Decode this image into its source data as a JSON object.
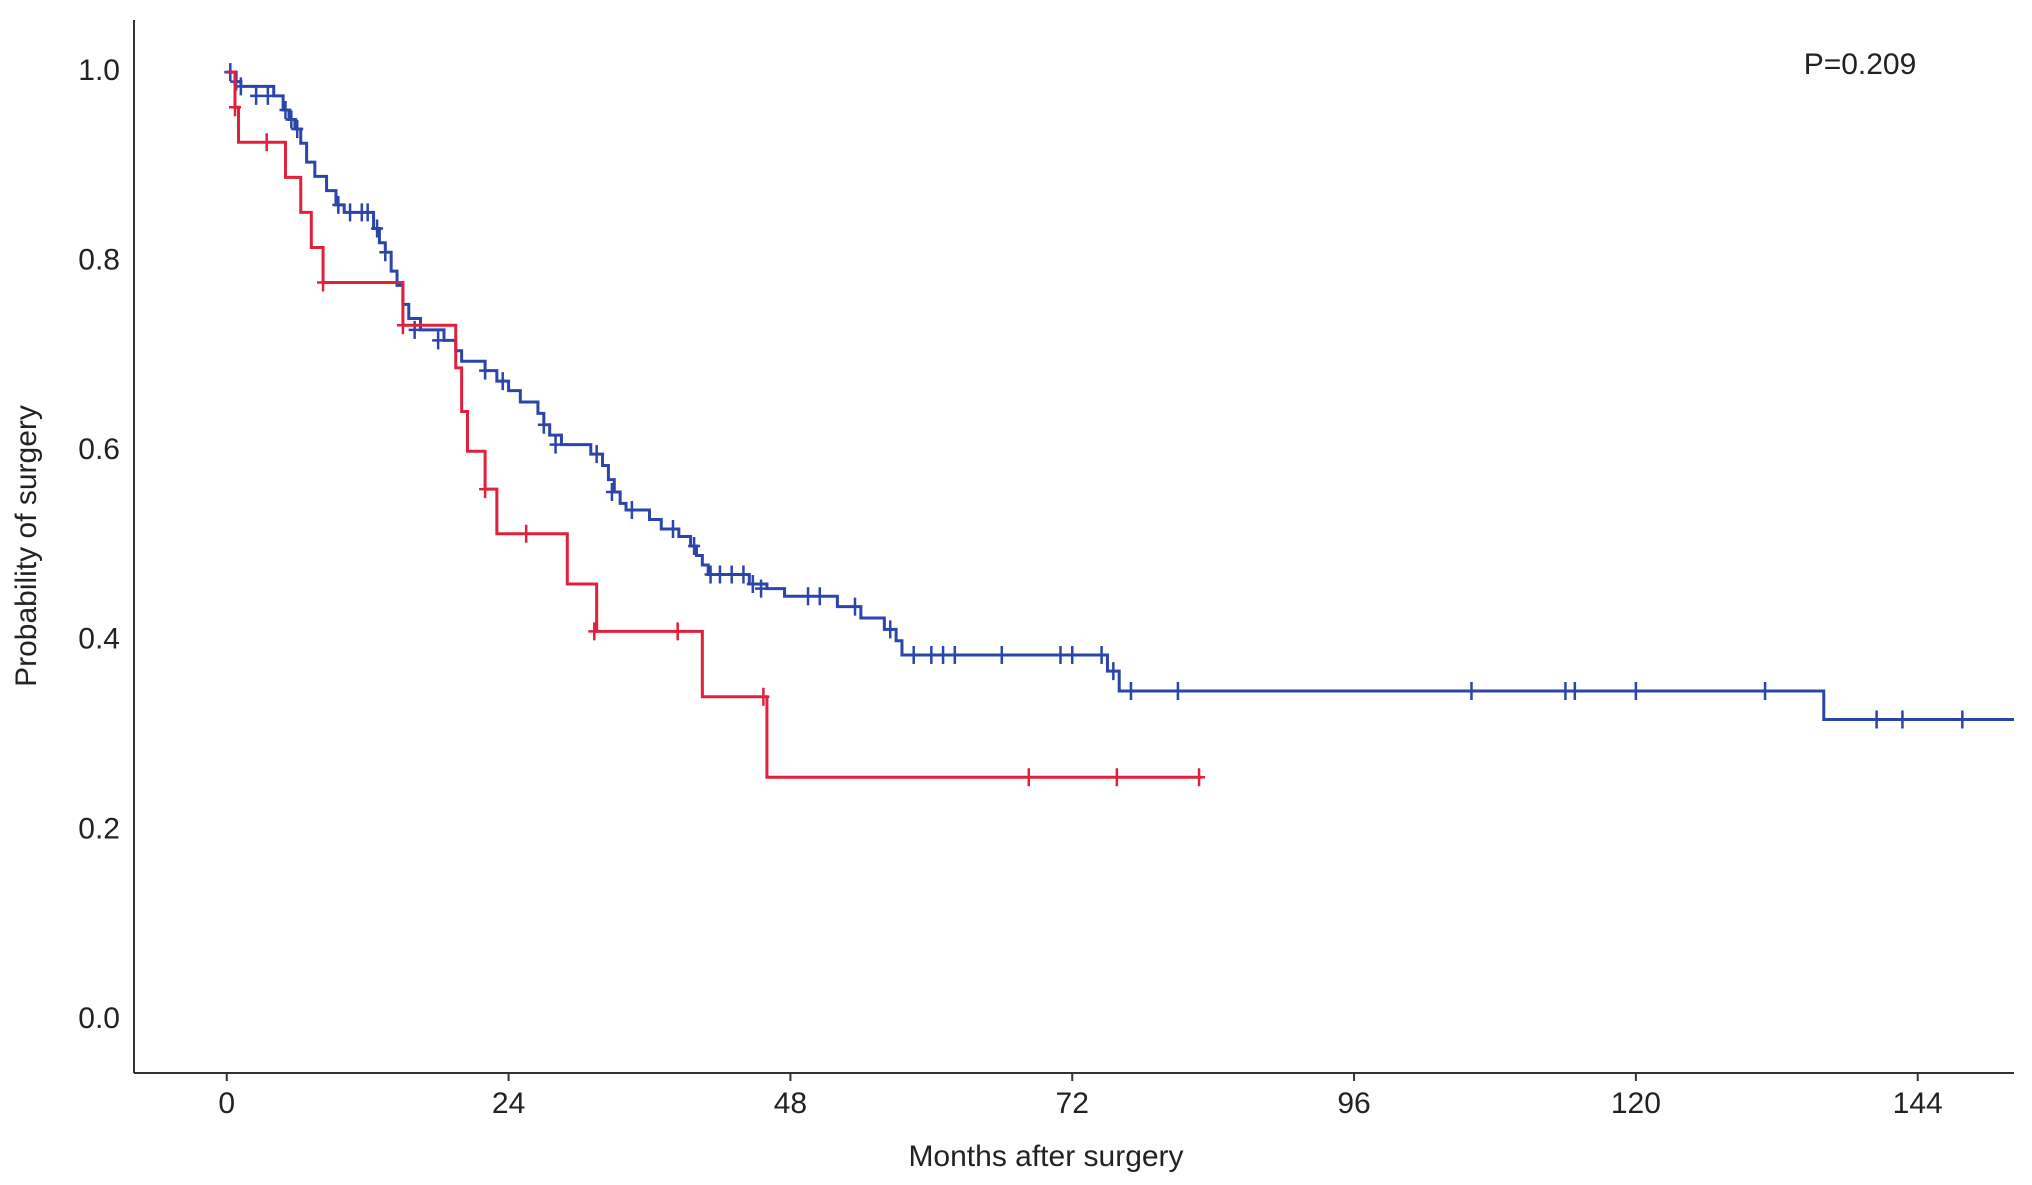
{
  "chart_data": {
    "type": "step",
    "annotation": "P=0.209",
    "xlabel": "Months after surgery",
    "ylabel": "Probability of surgery",
    "xlim": [
      -7.9,
      152.2
    ],
    "ylim": [
      -0.056,
      1.055
    ],
    "xticks": [
      0,
      24,
      48,
      72,
      96,
      120,
      144
    ],
    "yticks": [
      {
        "value": 0,
        "label": "0.0"
      },
      {
        "value": 0.2,
        "label": "0.2"
      },
      {
        "value": 0.4,
        "label": "0.4"
      },
      {
        "value": 0.6,
        "label": "0.6"
      },
      {
        "value": 0.8,
        "label": "0.8"
      },
      {
        "value": 1,
        "label": "1.0"
      }
    ],
    "series": [
      {
        "color": "#2b45a8",
        "x": [
          0,
          0.8,
          1.2,
          4,
          4.8,
          5.3,
          5.8,
          6.3,
          6.8,
          7.5,
          8.5,
          9.3,
          10,
          12.5,
          13,
          13.5,
          14,
          14.5,
          15,
          15.5,
          16.5,
          18.5,
          19.5,
          20,
          22,
          23,
          24,
          25,
          26.5,
          27,
          27.5,
          28.5,
          31,
          32,
          32.5,
          33,
          33.5,
          34,
          36,
          37,
          38.5,
          39.5,
          40,
          40.5,
          41,
          44.5,
          46,
          47.5,
          52,
          54,
          56,
          57,
          57.5,
          75,
          76,
          136,
          152.2
        ],
        "values": [
          1.0,
          0.99,
          0.985,
          0.975,
          0.96,
          0.95,
          0.94,
          0.925,
          0.905,
          0.89,
          0.875,
          0.86,
          0.852,
          0.835,
          0.82,
          0.81,
          0.79,
          0.775,
          0.755,
          0.74,
          0.728,
          0.717,
          0.706,
          0.695,
          0.685,
          0.674,
          0.664,
          0.652,
          0.64,
          0.628,
          0.617,
          0.607,
          0.597,
          0.585,
          0.57,
          0.557,
          0.545,
          0.538,
          0.528,
          0.518,
          0.51,
          0.5,
          0.49,
          0.48,
          0.47,
          0.46,
          0.455,
          0.447,
          0.436,
          0.424,
          0.412,
          0.4,
          0.385,
          0.368,
          0.347,
          0.317,
          0.317
        ],
        "censored": {
          "x": [
            0.3,
            0.8,
            1.2,
            2.5,
            3.5,
            5,
            5.5,
            6,
            9.5,
            10.5,
            11.5,
            12,
            12.8,
            13.5,
            16,
            18,
            22,
            23.5,
            27,
            28,
            31.5,
            32.8,
            34.5,
            38,
            39.8,
            41.2,
            42,
            43,
            44,
            44.8,
            45.5,
            49.5,
            50.5,
            53.5,
            56.5,
            58.5,
            60,
            61,
            62,
            66,
            71,
            72,
            74.5,
            75.5,
            77,
            81,
            106,
            114,
            114.8,
            120,
            131,
            140.5,
            142.7,
            147.8
          ],
          "values": [
            1.0,
            0.99,
            0.985,
            0.975,
            0.975,
            0.96,
            0.95,
            0.94,
            0.86,
            0.852,
            0.852,
            0.852,
            0.835,
            0.81,
            0.728,
            0.717,
            0.685,
            0.674,
            0.628,
            0.607,
            0.597,
            0.557,
            0.538,
            0.518,
            0.5,
            0.47,
            0.47,
            0.47,
            0.47,
            0.46,
            0.455,
            0.447,
            0.447,
            0.436,
            0.412,
            0.385,
            0.385,
            0.385,
            0.385,
            0.385,
            0.385,
            0.385,
            0.385,
            0.368,
            0.347,
            0.347,
            0.347,
            0.347,
            0.347,
            0.347,
            0.347,
            0.317,
            0.317,
            0.317
          ]
        }
      },
      {
        "color": "#e0203c",
        "x": [
          0,
          0.7,
          1,
          5,
          6.3,
          7.2,
          8.2,
          15,
          19.5,
          20,
          20.5,
          22,
          23,
          29,
          31.5,
          40.5,
          46,
          83
        ],
        "values": [
          1.0,
          0.963,
          0.926,
          0.889,
          0.852,
          0.815,
          0.778,
          0.733,
          0.688,
          0.642,
          0.6,
          0.56,
          0.513,
          0.46,
          0.41,
          0.341,
          0.256,
          0.256
        ],
        "censored": {
          "x": [
            0.7,
            3.4,
            8.2,
            15,
            22,
            25.5,
            31.3,
            38.4,
            45.7,
            68.3,
            75.8,
            82.8
          ],
          "values": [
            0.963,
            0.926,
            0.778,
            0.733,
            0.56,
            0.513,
            0.41,
            0.41,
            0.341,
            0.256,
            0.256,
            0.256
          ]
        }
      }
    ]
  }
}
